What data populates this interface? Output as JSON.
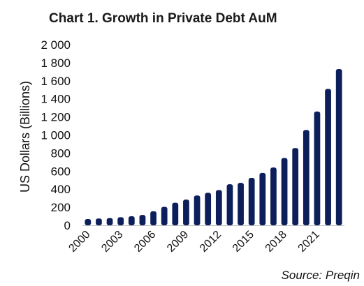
{
  "chart_data": {
    "type": "bar",
    "title": "Chart 1. Growth in Private Debt AuM",
    "ylabel": "US Dollars (Billions)",
    "xlabel": "",
    "source": "Source: Preqin",
    "ylim": [
      0,
      2000
    ],
    "yticks": [
      0,
      200,
      400,
      600,
      800,
      1000,
      1200,
      1400,
      1600,
      1800,
      2000
    ],
    "ytick_labels": [
      "0",
      "200",
      "400",
      "600",
      "800",
      "1 000",
      "1 200",
      "1 400",
      "1 600",
      "1 800",
      "2 000"
    ],
    "xtick_labels": [
      "2000",
      "2003",
      "2006",
      "2009",
      "2012",
      "2015",
      "2018",
      "2021"
    ],
    "grid": false,
    "bar_color": "#0c1f5b",
    "categories": [
      "2000",
      "2001",
      "2002",
      "2003",
      "2004",
      "2005",
      "2006",
      "2007",
      "2008",
      "2009",
      "2010",
      "2011",
      "2012",
      "2013",
      "2014",
      "2015",
      "2016",
      "2017",
      "2018",
      "2019",
      "2020",
      "2021",
      "2022",
      "2023"
    ],
    "values": [
      70,
      75,
      80,
      90,
      100,
      115,
      155,
      205,
      250,
      285,
      330,
      360,
      390,
      455,
      470,
      525,
      580,
      640,
      745,
      855,
      1055,
      1260,
      1510,
      1730
    ]
  }
}
